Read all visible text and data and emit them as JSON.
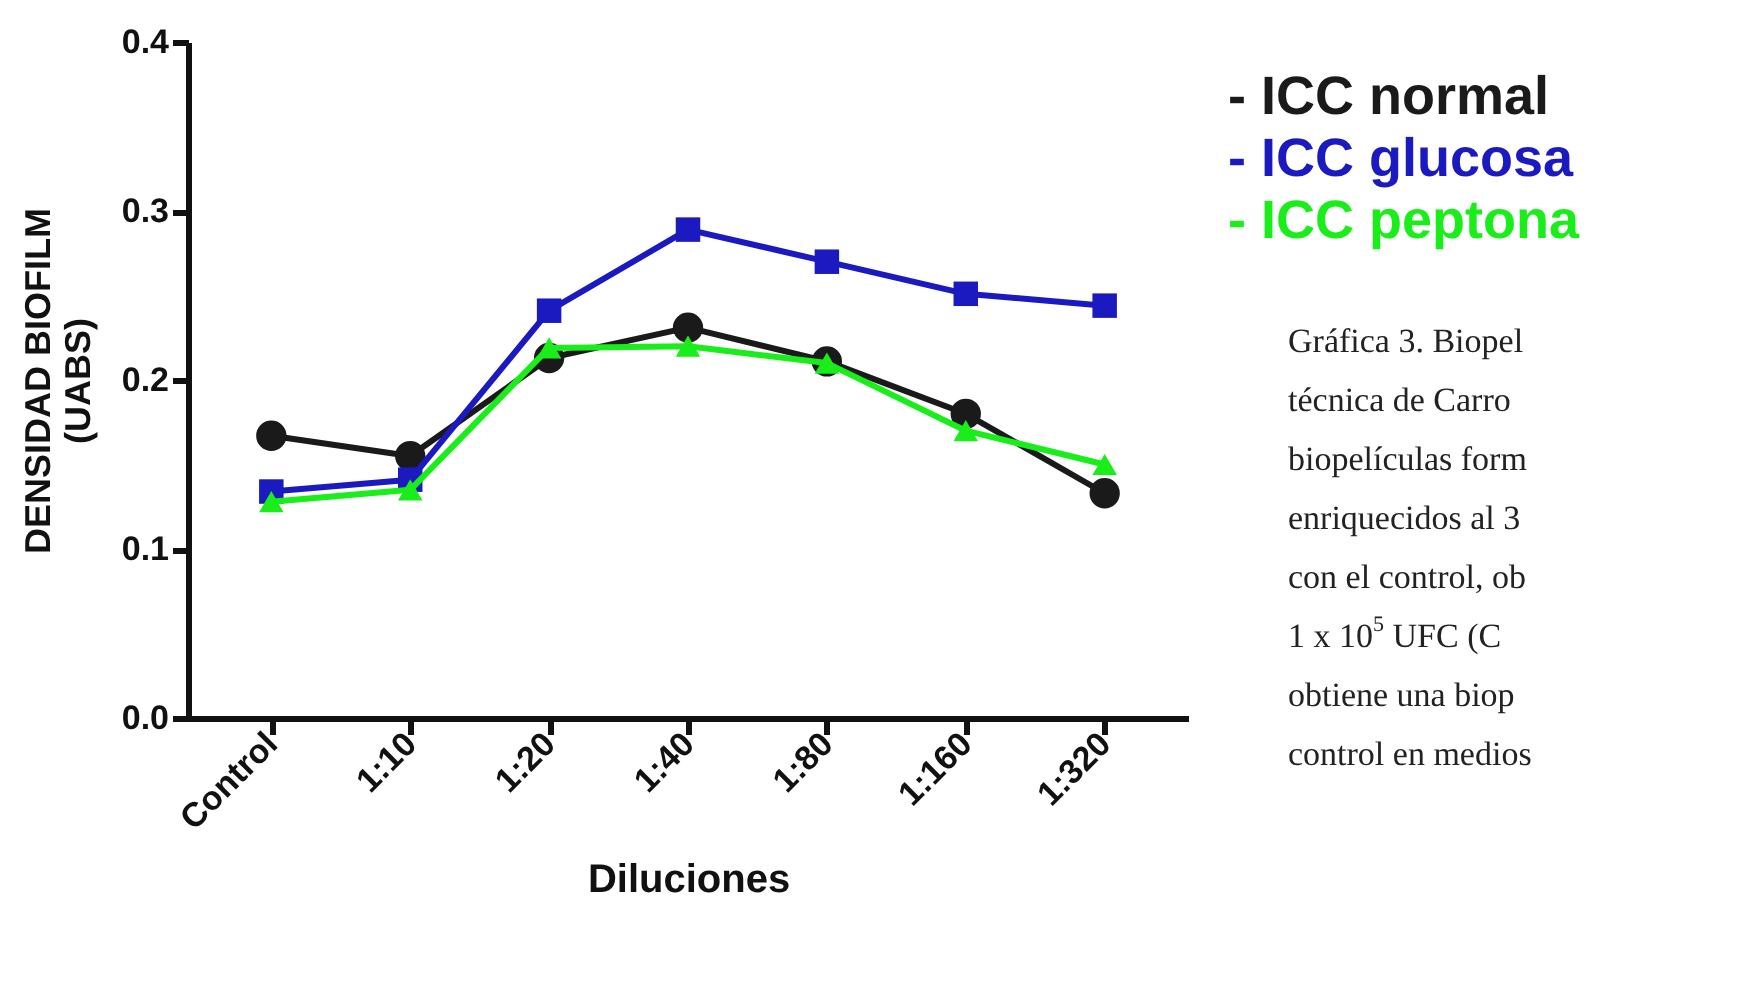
{
  "chart_data": {
    "type": "line",
    "xlabel": "Diluciones",
    "ylabel": "DENSIDAD BIOFILM\n(UABS)",
    "categories": [
      "Control",
      "1:10",
      "1:20",
      "1:40",
      "1:80",
      "1:160",
      "1:320"
    ],
    "series": [
      {
        "name": "- ICC normal",
        "color": "#1a1a1a",
        "marker": "circle",
        "values": [
          0.167,
          0.155,
          0.213,
          0.231,
          0.211,
          0.18,
          0.133
        ]
      },
      {
        "name": "- ICC glucosa",
        "color": "#1a1ac0",
        "marker": "square",
        "values": [
          0.134,
          0.141,
          0.241,
          0.289,
          0.27,
          0.251,
          0.244
        ]
      },
      {
        "name": "- ICC peptona",
        "color": "#1aee1a",
        "marker": "triangle",
        "values": [
          0.128,
          0.135,
          0.219,
          0.22,
          0.21,
          0.17,
          0.15
        ]
      }
    ],
    "ylim": [
      0,
      0.4
    ],
    "yticks": [
      {
        "value": 0,
        "label": "0.0"
      },
      0.1,
      0.2,
      0.3,
      0.4
    ],
    "grid": false,
    "legend": "top right",
    "annotations": [
      "Gráfica 3. **Biopel**",
      "técnica de Carro",
      "biopelículas form",
      "enriquecidos al 3",
      "con el control, ob",
      "1 x 10$^{5}$ UFC (C",
      "obtiene una biop",
      "control en medios"
    ]
  }
}
